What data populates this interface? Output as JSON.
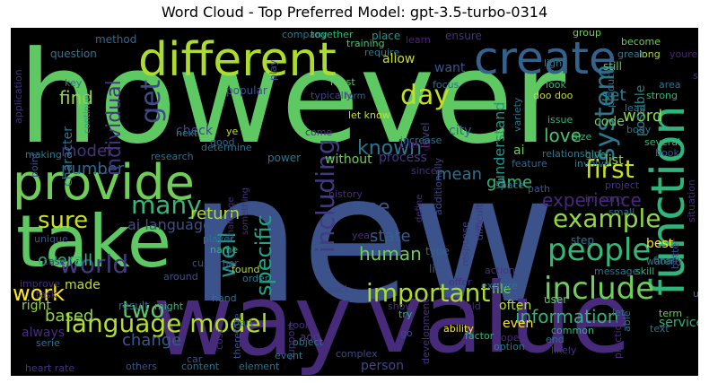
{
  "chart_data": {
    "type": "wordcloud",
    "title": "Word Cloud - Top Preferred Model: gpt-3.5-turbo-0314",
    "background": "#000000",
    "colormap": "viridis",
    "words": [
      {
        "text": "however",
        "color": "#5ec962"
      },
      {
        "text": "new",
        "color": "#3b528b"
      },
      {
        "text": "way",
        "color": "#472a7a"
      },
      {
        "text": "value",
        "color": "#472a7a"
      },
      {
        "text": "take",
        "color": "#5ec962"
      },
      {
        "text": "provide",
        "color": "#6ece58"
      },
      {
        "text": "different",
        "color": "#addc30"
      },
      {
        "text": "create",
        "color": "#33638d"
      },
      {
        "text": "function",
        "color": "#2fb47c"
      },
      {
        "text": "people",
        "color": "#35b779"
      },
      {
        "text": "including",
        "color": "#443983"
      },
      {
        "text": "language model",
        "color": "#b5de2b"
      },
      {
        "text": "world",
        "color": "#443a83"
      },
      {
        "text": "important",
        "color": "#addc30"
      },
      {
        "text": "include",
        "color": "#6ece58"
      },
      {
        "text": "example",
        "color": "#90d743"
      },
      {
        "text": "work",
        "color": "#fde725"
      },
      {
        "text": "provide",
        "color": "#6ece58"
      },
      {
        "text": "sure",
        "color": "#c8e020"
      },
      {
        "text": "system",
        "color": "#2a788e"
      },
      {
        "text": "many",
        "color": "#35b779"
      },
      {
        "text": "day",
        "color": "#c2df23"
      },
      {
        "text": "first",
        "color": "#c8e020"
      },
      {
        "text": "two",
        "color": "#5ec962"
      },
      {
        "text": "information",
        "color": "#2fb47c"
      },
      {
        "text": "get",
        "color": "#3e4989"
      },
      {
        "text": "well",
        "color": "#21918c"
      },
      {
        "text": "specific",
        "color": "#20a486"
      },
      {
        "text": "human",
        "color": "#6ece58"
      },
      {
        "text": "find",
        "color": "#90d743"
      },
      {
        "text": "set",
        "color": "#277f8e"
      },
      {
        "text": "word",
        "color": "#90d743"
      },
      {
        "text": "known",
        "color": "#2a788e"
      },
      {
        "text": "return",
        "color": "#b5de2b"
      },
      {
        "text": "love",
        "color": "#4ac16d"
      },
      {
        "text": "game",
        "color": "#35b779"
      },
      {
        "text": "see",
        "color": "#39568c"
      },
      {
        "text": "change",
        "color": "#38598c"
      },
      {
        "text": "number",
        "color": "#31688e"
      },
      {
        "text": "overall",
        "color": "#2fb47c"
      },
      {
        "text": "based",
        "color": "#90d743"
      },
      {
        "text": "state",
        "color": "#35608d"
      },
      {
        "text": "individual",
        "color": "#46337f"
      },
      {
        "text": "experience",
        "color": "#482878"
      },
      {
        "text": "mean",
        "color": "#2c728e"
      },
      {
        "text": "model",
        "color": "#46327e"
      },
      {
        "text": "character",
        "color": "#2a788e"
      },
      {
        "text": "code",
        "color": "#6ece58"
      },
      {
        "text": "list",
        "color": "#90d743"
      },
      {
        "text": "ai language",
        "color": "#3b528b"
      },
      {
        "text": "understand",
        "color": "#1f988b"
      },
      {
        "text": "method",
        "color": "#31688e"
      },
      {
        "text": "possible",
        "color": "#25838e"
      },
      {
        "text": "check",
        "color": "#3e4989"
      },
      {
        "text": "thing",
        "color": "#440154"
      },
      {
        "text": "process",
        "color": "#443983"
      },
      {
        "text": "life",
        "color": "#3b528b"
      },
      {
        "text": "made",
        "color": "#c2df23"
      },
      {
        "text": "file",
        "color": "#6ece58"
      },
      {
        "text": "user",
        "color": "#5ec962"
      },
      {
        "text": "person",
        "color": "#3e4989"
      },
      {
        "text": "service",
        "color": "#2fb47c"
      },
      {
        "text": "often",
        "color": "#bddf26"
      },
      {
        "text": "right",
        "color": "#90d743"
      },
      {
        "text": "always",
        "color": "#472d7b"
      },
      {
        "text": "ai",
        "color": "#6ece58"
      },
      {
        "text": "step",
        "color": "#2c728e"
      },
      {
        "text": "best",
        "color": "#fde725"
      },
      {
        "text": "city",
        "color": "#31688e"
      },
      {
        "text": "level",
        "color": "#414487"
      },
      {
        "text": "power",
        "color": "#2a788e"
      },
      {
        "text": "without",
        "color": "#6ece58"
      },
      {
        "text": "type",
        "color": "#35608d"
      },
      {
        "text": "even",
        "color": "#fde725"
      },
      {
        "text": "result",
        "color": "#31688e"
      },
      {
        "text": "add",
        "color": "#433e85"
      },
      {
        "text": "question",
        "color": "#2a788e"
      },
      {
        "text": "allow",
        "color": "#c8e020"
      },
      {
        "text": "want",
        "color": "#39568c"
      },
      {
        "text": "still",
        "color": "#5ec962"
      },
      {
        "text": "ensure",
        "color": "#46327e"
      },
      {
        "text": "place",
        "color": "#1f988b"
      },
      {
        "text": "learn",
        "color": "#482475"
      },
      {
        "text": "training",
        "color": "#4ac16d"
      },
      {
        "text": "group",
        "color": "#6ece58"
      },
      {
        "text": "become",
        "color": "#6ece58"
      },
      {
        "text": "long",
        "color": "#addc30"
      },
      {
        "text": "youre",
        "color": "#482475"
      },
      {
        "text": "company",
        "color": "#2a788e"
      },
      {
        "text": "together",
        "color": "#35b779"
      },
      {
        "text": "require",
        "color": "#2a788e"
      },
      {
        "text": "focus",
        "color": "#2c728e"
      },
      {
        "text": "light",
        "color": "#2a788e"
      },
      {
        "text": "great",
        "color": "#2a788e"
      },
      {
        "text": "look",
        "color": "#2fb47c"
      },
      {
        "text": "doo doo",
        "color": "#c2df23"
      },
      {
        "text": "area",
        "color": "#2c728e"
      },
      {
        "text": "strong",
        "color": "#2fb47c"
      },
      {
        "text": "lead",
        "color": "#2a788e"
      },
      {
        "text": "must",
        "color": "#5ec962"
      },
      {
        "text": "form",
        "color": "#31688e"
      },
      {
        "text": "let know",
        "color": "#c8e020"
      },
      {
        "text": "issue",
        "color": "#2fb47c"
      },
      {
        "text": "popular",
        "color": "#3b528b"
      },
      {
        "text": "typically",
        "color": "#414487"
      },
      {
        "text": "play",
        "color": "#3b528b"
      },
      {
        "text": "key",
        "color": "#31688e"
      },
      {
        "text": "determine",
        "color": "#2c728e"
      },
      {
        "text": "continue",
        "color": "#20a486"
      },
      {
        "text": "next",
        "color": "#2a788e"
      },
      {
        "text": "good",
        "color": "#31688e"
      },
      {
        "text": "ye",
        "color": "#c2df23"
      },
      {
        "text": "come",
        "color": "#46337f"
      },
      {
        "text": "increase",
        "color": "#2c728e"
      },
      {
        "text": "give",
        "color": "#2fb47c"
      },
      {
        "text": "relationship",
        "color": "#2a788e"
      },
      {
        "text": "feature",
        "color": "#31688e"
      },
      {
        "text": "involve",
        "color": "#2a788e"
      },
      {
        "text": "body",
        "color": "#2c728e"
      },
      {
        "text": "several",
        "color": "#35b779"
      },
      {
        "text": "book",
        "color": "#3b528b"
      },
      {
        "text": "size",
        "color": "#2fb47c"
      },
      {
        "text": "making",
        "color": "#2a788e"
      },
      {
        "text": "research",
        "color": "#2c728e"
      },
      {
        "text": "since",
        "color": "#472d7b"
      },
      {
        "text": "additionally",
        "color": "#3e4989"
      },
      {
        "text": "space",
        "color": "#2c728e"
      },
      {
        "text": "project",
        "color": "#46327e"
      },
      {
        "text": "im sorry",
        "color": "#472d7b"
      },
      {
        "text": "small",
        "color": "#2c728e"
      },
      {
        "text": "path",
        "color": "#3b528b"
      },
      {
        "text": "history",
        "color": "#472d7b"
      },
      {
        "text": "define",
        "color": "#46327e"
      },
      {
        "text": "difficult",
        "color": "#443983"
      },
      {
        "text": "challenge",
        "color": "#472d7b"
      },
      {
        "text": "something",
        "color": "#46327e"
      },
      {
        "text": "unique",
        "color": "#3b528b"
      },
      {
        "text": "year",
        "color": "#472d7b"
      },
      {
        "text": "response",
        "color": "#433e85"
      },
      {
        "text": "player",
        "color": "#2c728e"
      },
      {
        "text": "name",
        "color": "#2fb47c"
      },
      {
        "text": "found",
        "color": "#addc30"
      },
      {
        "text": "finally",
        "color": "#2a788e"
      },
      {
        "text": "better",
        "color": "#3e4989"
      },
      {
        "text": "situation",
        "color": "#472d7b"
      },
      {
        "text": "case",
        "color": "#472d7b"
      },
      {
        "text": "customer",
        "color": "#3b528b"
      },
      {
        "text": "action",
        "color": "#46327e"
      },
      {
        "text": "skill",
        "color": "#2fb47c"
      },
      {
        "text": "water",
        "color": "#2a788e"
      },
      {
        "text": "message",
        "color": "#2c728e"
      },
      {
        "text": "improve",
        "color": "#472d7b"
      },
      {
        "text": "around",
        "color": "#3b528b"
      },
      {
        "text": "order",
        "color": "#2a788e"
      },
      {
        "text": "offer",
        "color": "#46327e"
      },
      {
        "text": "explore",
        "color": "#2c728e"
      },
      {
        "text": "task",
        "color": "#472d7b"
      },
      {
        "text": "back",
        "color": "#3e4989"
      },
      {
        "text": "uses",
        "color": "#2a788e"
      },
      {
        "text": "might",
        "color": "#35b779"
      },
      {
        "text": "hand",
        "color": "#2c728e"
      },
      {
        "text": "term",
        "color": "#6ece58"
      },
      {
        "text": "show",
        "color": "#46327e"
      },
      {
        "text": "field",
        "color": "#472d7b"
      },
      {
        "text": "try",
        "color": "#35b779"
      },
      {
        "text": "ability",
        "color": "#fde725"
      },
      {
        "text": "common",
        "color": "#2fb47c"
      },
      {
        "text": "let",
        "color": "#2c728e"
      },
      {
        "text": "able",
        "color": "#2a788e"
      },
      {
        "text": "text",
        "color": "#2c728e"
      },
      {
        "text": "part",
        "color": "#2c728e"
      },
      {
        "text": "tool",
        "color": "#472d7b"
      },
      {
        "text": "therefore",
        "color": "#3b528b"
      },
      {
        "text": "cost",
        "color": "#472d7b"
      },
      {
        "text": "object",
        "color": "#2c728e"
      },
      {
        "text": "support",
        "color": "#46327e"
      },
      {
        "text": "go",
        "color": "#3e4989"
      },
      {
        "text": "factor",
        "color": "#35b779"
      },
      {
        "text": "open",
        "color": "#472d7b"
      },
      {
        "text": "option",
        "color": "#2a788e"
      },
      {
        "text": "end",
        "color": "#2c728e"
      },
      {
        "text": "likely",
        "color": "#46327e"
      },
      {
        "text": "practice",
        "color": "#472d7b"
      },
      {
        "text": "serie",
        "color": "#2c728e"
      },
      {
        "text": "event",
        "color": "#2c728e"
      },
      {
        "text": "complex",
        "color": "#3e4989"
      },
      {
        "text": "development",
        "color": "#46327e"
      },
      {
        "text": "heart rate",
        "color": "#46327e"
      },
      {
        "text": "others",
        "color": "#3b528b"
      },
      {
        "text": "car",
        "color": "#3b528b"
      },
      {
        "text": "content",
        "color": "#2c728e"
      },
      {
        "text": "element",
        "color": "#2c728e"
      },
      {
        "text": "application",
        "color": "#472d7b"
      },
      {
        "text": "point",
        "color": "#3b528b"
      },
      {
        "text": "product",
        "color": "#2c728e"
      },
      {
        "text": "variety",
        "color": "#2a788e"
      },
      {
        "text": "strong",
        "color": "#472d7b"
      }
    ]
  }
}
